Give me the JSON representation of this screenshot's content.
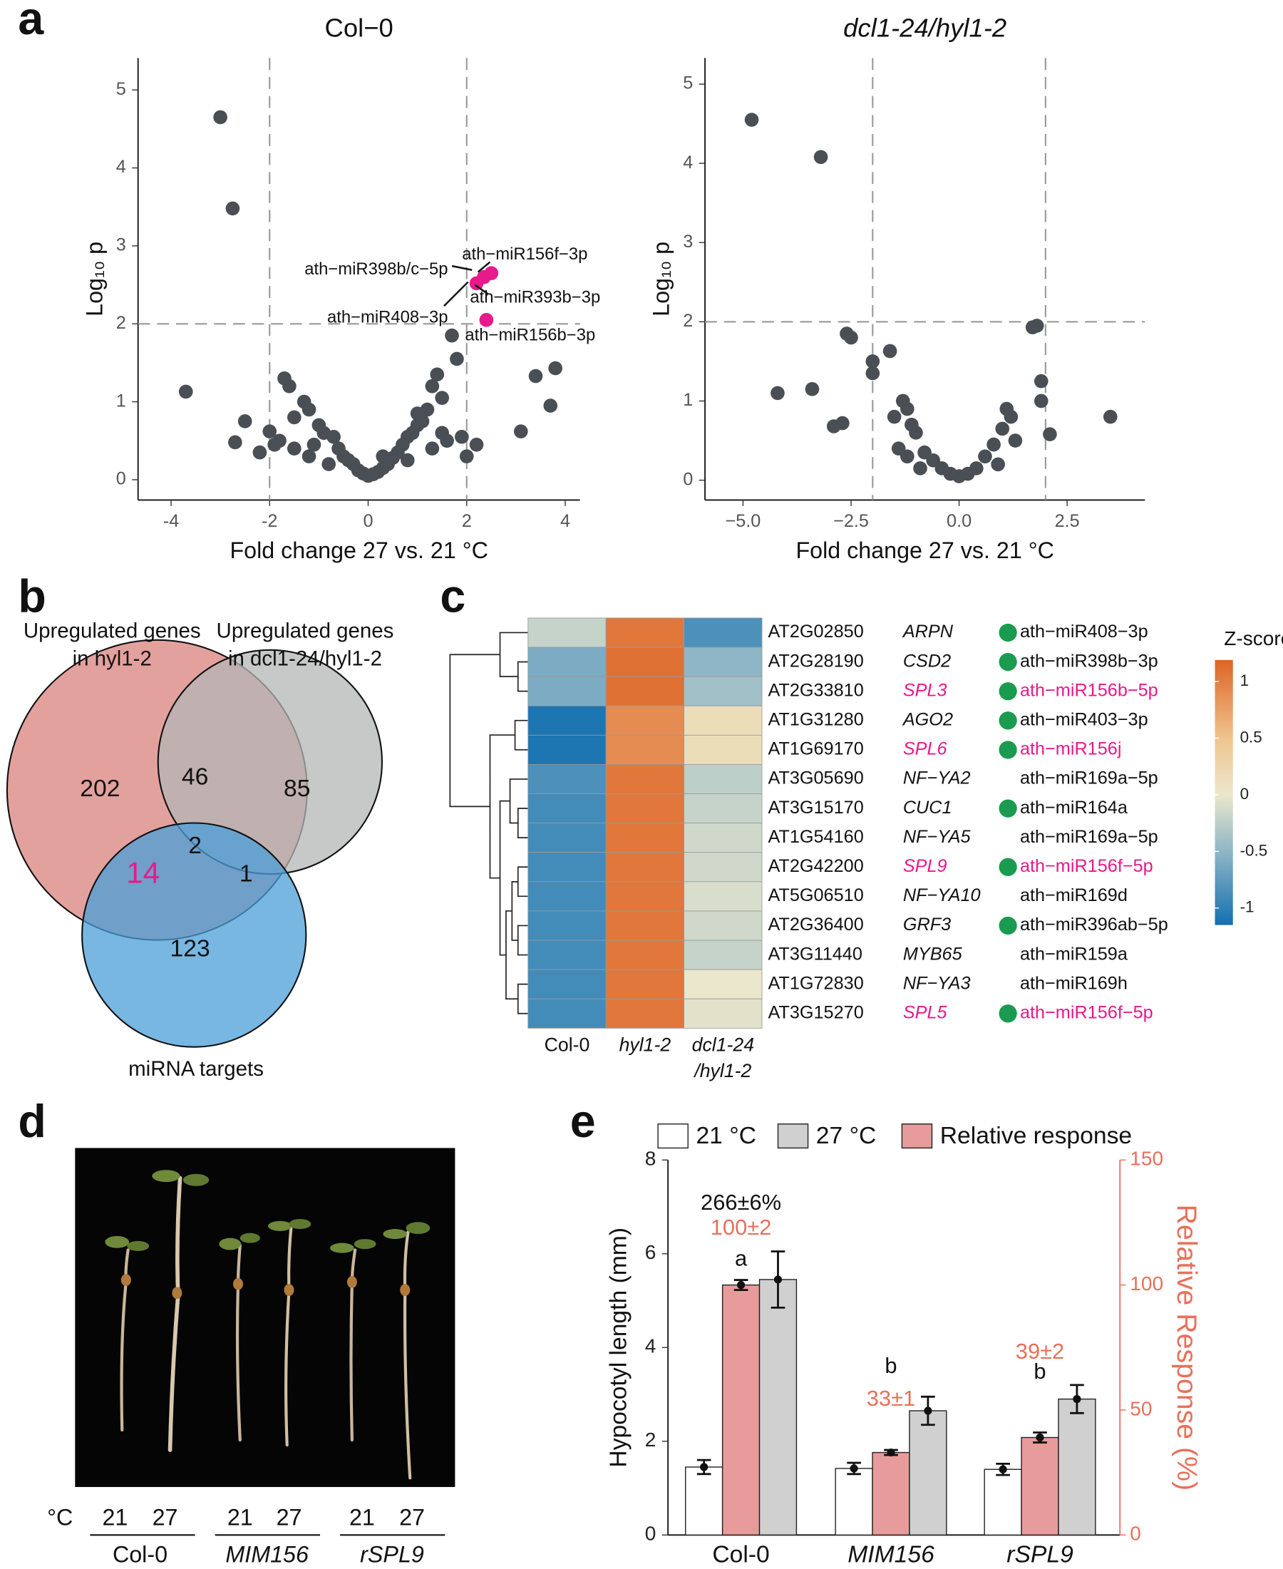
{
  "panel_labels": [
    "a",
    "b",
    "c",
    "d",
    "e"
  ],
  "chart_data": [
    {
      "type": "scatter",
      "title": "Col−0",
      "x_label": "Fold change 27 vs. 21 °C",
      "y_label": "Log₁₀ p",
      "xlim": [
        -4.67,
        4.3
      ],
      "ylim": [
        -0.26,
        5.41
      ],
      "xticks": [
        -4,
        -2,
        0,
        2,
        4
      ],
      "yticks": [
        0,
        1,
        2,
        3,
        4,
        5
      ],
      "x_thresholds": [
        -2,
        2
      ],
      "y_threshold": 2,
      "series": [
        {
          "color": "#4a4f55",
          "x": [
            -3,
            -2.75,
            -3.7,
            -2.5,
            -2.7,
            -2.2,
            -1.9,
            -1.7,
            -1.6,
            -1.5,
            -1.3,
            -1.2,
            -1.0,
            -0.9,
            -1.5,
            -1.8,
            -0.7,
            -0.6,
            -0.5,
            -0.4,
            -0.3,
            -0.2,
            -0.1,
            0,
            0.1,
            0.2,
            0.3,
            0.4,
            0.5,
            0.6,
            0.7,
            0.8,
            0.9,
            1.0,
            1.0,
            1.1,
            1.2,
            1.3,
            1.4,
            1.5,
            1.5,
            1.6,
            1.7,
            1.8,
            1.9,
            2.0,
            2.2,
            3.1,
            3.7,
            3.8,
            3.4,
            -1.2,
            -0.8,
            0.8,
            1.3,
            -2.0,
            -1.1,
            0.3
          ],
          "y": [
            4.65,
            3.48,
            1.13,
            0.75,
            0.48,
            0.35,
            0.45,
            1.3,
            1.2,
            0.8,
            1.0,
            0.9,
            0.7,
            0.6,
            0.4,
            0.5,
            0.55,
            0.4,
            0.3,
            0.25,
            0.2,
            0.12,
            0.08,
            0.05,
            0.07,
            0.1,
            0.15,
            0.2,
            0.28,
            0.35,
            0.45,
            0.55,
            0.6,
            0.7,
            0.85,
            0.75,
            0.9,
            1.2,
            1.35,
            1.05,
            0.6,
            0.5,
            1.85,
            1.55,
            0.55,
            0.3,
            0.45,
            0.62,
            0.95,
            1.43,
            1.33,
            0.3,
            0.2,
            0.25,
            0.4,
            0.62,
            0.45,
            0.3
          ]
        },
        {
          "color": "#e8198b",
          "x": [
            2.2,
            2.35,
            2.5,
            2.4
          ],
          "y": [
            2.52,
            2.6,
            2.65,
            2.05
          ]
        }
      ],
      "annotations": [
        "ath−miR156f−3p",
        "ath−miR398b/c−5p",
        "ath−miR393b−3p",
        "ath−miR408−3p",
        "ath−miR156b−3p"
      ]
    },
    {
      "type": "scatter",
      "title": "dcl1-24/hyl1-2",
      "x_label": "Fold change 27 vs. 21 °C",
      "y_label": "Log₁₀ p",
      "xlim": [
        -5.88,
        4.3
      ],
      "ylim": [
        -0.25,
        5.33
      ],
      "xticks": [
        {
          "value": -5,
          "label": "−5.0"
        },
        {
          "value": -2.5,
          "label": "−2.5"
        },
        {
          "value": 0,
          "label": "0.0"
        },
        {
          "value": 2.5,
          "label": "2.5"
        }
      ],
      "yticks": [
        0,
        1,
        2,
        3,
        4,
        5
      ],
      "x_thresholds": [
        -2,
        2
      ],
      "y_threshold": 2,
      "series": [
        {
          "color": "#4a4f55",
          "x": [
            -4.8,
            -3.2,
            -4.2,
            -3.4,
            -2.9,
            -2.7,
            -2.5,
            -2.6,
            -2.0,
            -2.0,
            -1.6,
            -1.5,
            -1.3,
            -1.2,
            -1.1,
            -1.0,
            -1.4,
            -1.2,
            -0.8,
            -0.6,
            -0.4,
            -0.2,
            0,
            0.2,
            0.4,
            0.6,
            0.8,
            1.0,
            1.1,
            1.2,
            1.3,
            1.7,
            1.8,
            1.9,
            2.1,
            3.5,
            1.9,
            0.9,
            -0.9
          ],
          "y": [
            4.55,
            4.08,
            1.1,
            1.15,
            0.68,
            0.72,
            1.8,
            1.85,
            1.5,
            1.35,
            1.63,
            0.8,
            1.0,
            0.9,
            0.7,
            0.6,
            0.4,
            0.3,
            0.35,
            0.25,
            0.15,
            0.08,
            0.05,
            0.08,
            0.15,
            0.3,
            0.45,
            0.65,
            0.9,
            0.8,
            0.5,
            1.93,
            1.95,
            1.25,
            0.58,
            0.8,
            1.0,
            0.2,
            0.15
          ]
        }
      ]
    },
    {
      "type": "venn",
      "sets": [
        {
          "label": [
            "Upregulated genes",
            "in hyl1-2"
          ],
          "color": "#d9827e"
        },
        {
          "label": [
            "Upregulated genes",
            "in dcl1-24/hyl1-2"
          ],
          "color": "#b4b5b5"
        },
        {
          "label": [
            "miRNA targets"
          ],
          "color": "#4a9fd8"
        }
      ],
      "regions": [
        202,
        46,
        85,
        2,
        14,
        1,
        123
      ],
      "highlight_color": "#e8198b"
    },
    {
      "type": "heatmap",
      "columns": [
        [
          "Col-0"
        ],
        [
          "hyl1-2"
        ],
        [
          "dcl1-24",
          "/hyl1-2"
        ]
      ],
      "rows": [
        {
          "id": "AT2G02850",
          "gene": "ARPN",
          "target": true,
          "mirna": "ath−miR408−3p",
          "highlight": false
        },
        {
          "id": "AT2G28190",
          "gene": "CSD2",
          "target": true,
          "mirna": "ath−miR398b−3p",
          "highlight": false
        },
        {
          "id": "AT2G33810",
          "gene": "SPL3",
          "target": true,
          "mirna": "ath−miR156b−5p",
          "highlight": true
        },
        {
          "id": "AT1G31280",
          "gene": "AGO2",
          "target": true,
          "mirna": "ath−miR403−3p",
          "highlight": false
        },
        {
          "id": "AT1G69170",
          "gene": "SPL6",
          "target": true,
          "mirna": "ath−miR156j",
          "highlight": true
        },
        {
          "id": "AT3G05690",
          "gene": "NF−YA2",
          "target": false,
          "mirna": "ath−miR169a−5p",
          "highlight": false
        },
        {
          "id": "AT3G15170",
          "gene": "CUC1",
          "target": true,
          "mirna": "ath−miR164a",
          "highlight": false
        },
        {
          "id": "AT1G54160",
          "gene": "NF−YA5",
          "target": false,
          "mirna": "ath−miR169a−5p",
          "highlight": false
        },
        {
          "id": "AT2G42200",
          "gene": "SPL9",
          "target": true,
          "mirna": "ath−miR156f−5p",
          "highlight": true
        },
        {
          "id": "AT5G06510",
          "gene": "NF−YA10",
          "target": false,
          "mirna": "ath−miR169d",
          "highlight": false
        },
        {
          "id": "AT2G36400",
          "gene": "GRF3",
          "target": true,
          "mirna": "ath−miR396ab−5p",
          "highlight": false
        },
        {
          "id": "AT3G11440",
          "gene": "MYB65",
          "target": false,
          "mirna": "ath−miR159a",
          "highlight": false
        },
        {
          "id": "AT1G72830",
          "gene": "NF−YA3",
          "target": false,
          "mirna": "ath−miR169h",
          "highlight": false
        },
        {
          "id": "AT3G15270",
          "gene": "SPL5",
          "target": true,
          "mirna": "ath−miR156f−5p",
          "highlight": true
        }
      ],
      "values": [
        [
          -0.2,
          1.05,
          -0.85
        ],
        [
          -0.6,
          1.1,
          -0.5
        ],
        [
          -0.6,
          1.1,
          -0.4
        ],
        [
          -1.1,
          0.9,
          0.15
        ],
        [
          -1.1,
          0.9,
          0.15
        ],
        [
          -0.85,
          1.05,
          -0.25
        ],
        [
          -0.9,
          1.05,
          -0.2
        ],
        [
          -0.9,
          1.05,
          -0.15
        ],
        [
          -0.9,
          1.05,
          -0.15
        ],
        [
          -0.9,
          1.05,
          -0.1
        ],
        [
          -0.9,
          1.05,
          -0.15
        ],
        [
          -0.9,
          1.05,
          -0.2
        ],
        [
          -0.9,
          1.05,
          0.0
        ],
        [
          -0.9,
          1.05,
          -0.05
        ]
      ],
      "colorbar_title": "Z-score",
      "zlim": [
        -1.15,
        1.19
      ],
      "zticks": [
        1,
        0.5,
        0,
        -0.5,
        -1
      ],
      "colorscale": [
        [
          -1.15,
          "#1470b0"
        ],
        [
          -0.5,
          "#8fb6c6"
        ],
        [
          0,
          "#ebe7cc"
        ],
        [
          0.5,
          "#efc48e"
        ],
        [
          1.19,
          "#dd6426"
        ]
      ],
      "target_color": "#1a9b50",
      "highlight_color": "#e8198b"
    },
    {
      "type": "bar",
      "categories": [
        "Col-0",
        "MIM156",
        "rSPL9"
      ],
      "y_label": "Hypocotyl length (mm)",
      "y2_label": "Relative Response (%)",
      "ylim": [
        0,
        8
      ],
      "yticks": [
        0,
        2,
        4,
        6,
        8
      ],
      "y2lim": [
        0,
        150
      ],
      "y2ticks": [
        0,
        50,
        100,
        150
      ],
      "y2_color": "#e8705a",
      "series": [
        {
          "name": "21 °C",
          "color": "#ffffff",
          "values": [
            1.45,
            1.42,
            1.4
          ],
          "errors": [
            0.15,
            0.12,
            0.12
          ]
        },
        {
          "name": "Relative response",
          "color": "#e89b9b",
          "axis": "y2",
          "values": [
            100,
            33,
            39
          ],
          "errors": [
            2,
            1,
            2
          ]
        },
        {
          "name": "27 °C",
          "color": "#cfd0cf",
          "values": [
            5.45,
            2.65,
            2.9
          ],
          "errors": [
            0.6,
            0.3,
            0.3
          ]
        }
      ],
      "annotations": [
        {
          "text": "266±6%",
          "color": "#111111"
        },
        {
          "text": "100±2",
          "color": "#e8705a"
        },
        {
          "text": "a",
          "color": "#111111"
        },
        {
          "text": "b",
          "color": "#111111"
        },
        {
          "text": "33±1",
          "color": "#e8705a"
        },
        {
          "text": "b",
          "color": "#111111"
        },
        {
          "text": "39±2",
          "color": "#e8705a"
        }
      ]
    }
  ],
  "panel_d": {
    "unit": "°C",
    "temperatures": [
      21,
      27,
      21,
      27,
      21,
      27
    ],
    "genotypes": [
      "Col-0",
      "MIM156",
      "rSPL9"
    ]
  }
}
